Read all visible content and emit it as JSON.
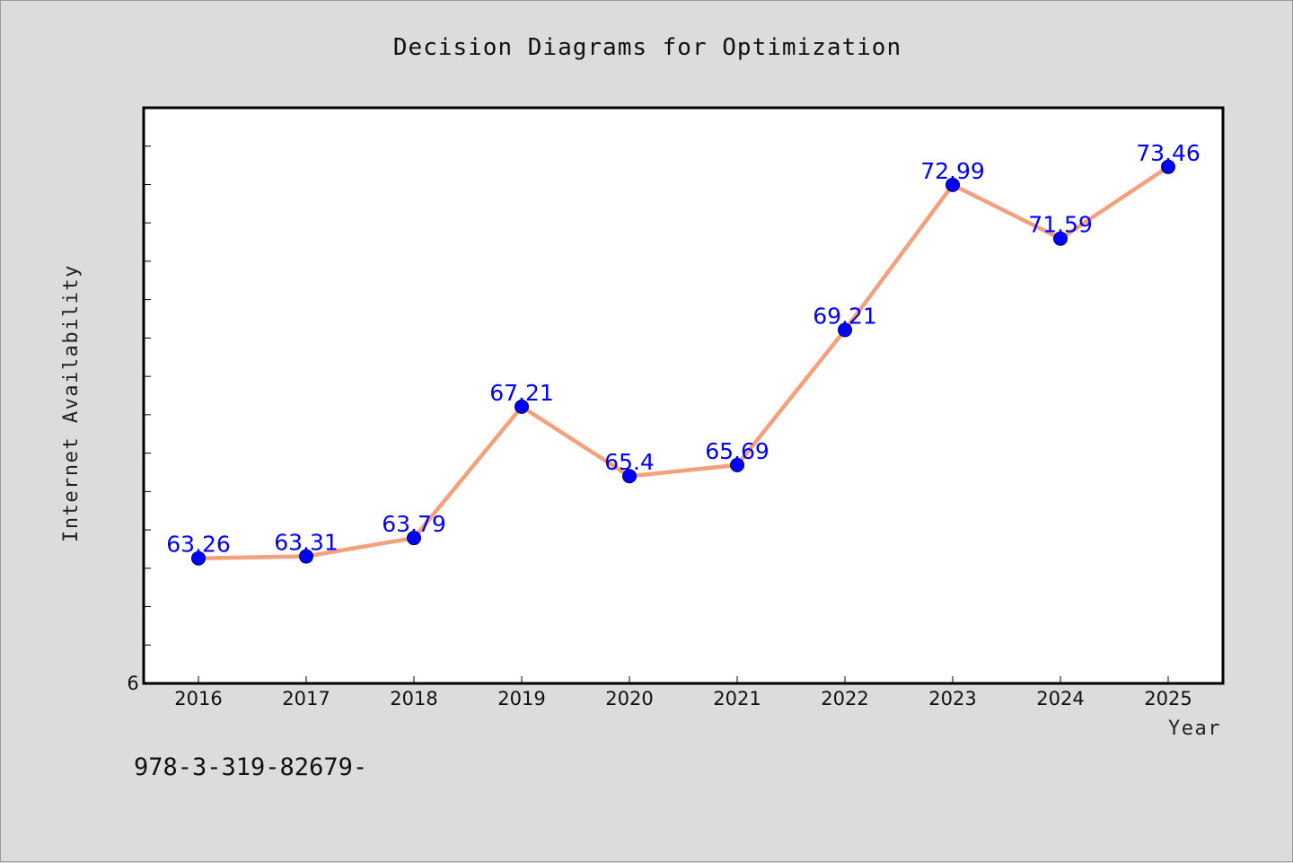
{
  "chart_data": {
    "type": "line",
    "title": "Decision Diagrams for Optimization",
    "xlabel": "Year",
    "ylabel": "Internet Availability",
    "categories": [
      "2016",
      "2017",
      "2018",
      "2019",
      "2020",
      "2021",
      "2022",
      "2023",
      "2024",
      "2025"
    ],
    "series": [
      {
        "values": [
          63.26,
          63.31,
          63.79,
          67.21,
          65.4,
          65.69,
          69.21,
          72.99,
          71.59,
          73.46
        ],
        "labels": [
          "63.26",
          "63.31",
          "63.79",
          "67.21",
          "65.4",
          "65.69",
          "69.21",
          "72.99",
          "71.59",
          "73.46"
        ],
        "line_color": "#f4a07a",
        "marker_color": "#0000ff"
      }
    ],
    "y_tick_label": "6",
    "ylim": [
      60,
      75
    ],
    "grid": false,
    "legend": "none"
  },
  "footnote": "978-3-319-82679-"
}
